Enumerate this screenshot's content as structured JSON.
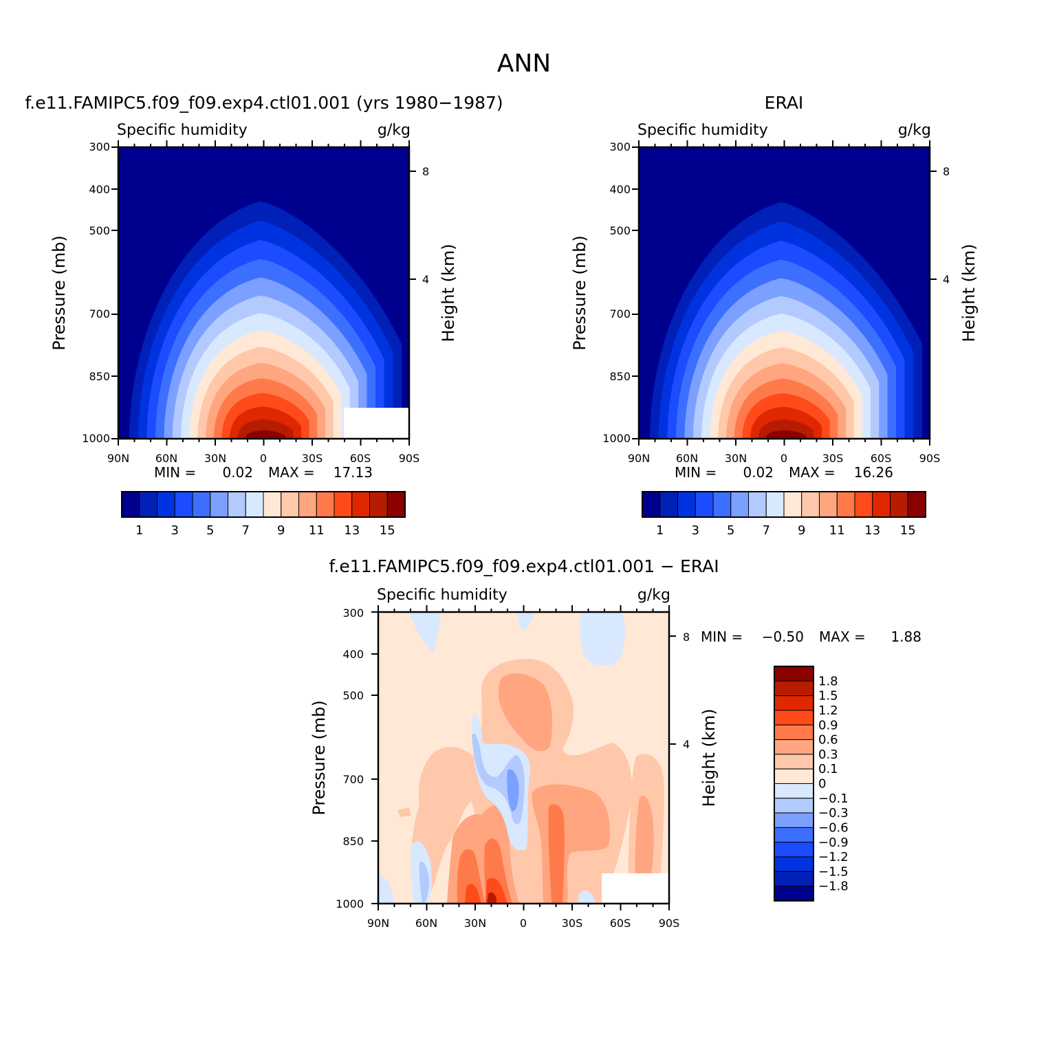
{
  "figure": {
    "title": "ANN"
  },
  "chart_data": [
    {
      "type": "contour",
      "title": "f.e11.FAMIPC5.f09_f09.exp4.ctl01.001 (yrs 1980−1987)",
      "left_subtitle": "Specific humidity",
      "right_subtitle": "g/kg",
      "ylabel": "Pressure (mb)",
      "ylabel_right": "Height (km)",
      "x_ticks": [
        "90N",
        "60N",
        "30N",
        "0",
        "30S",
        "60S",
        "90S"
      ],
      "y_ticks": [
        "300",
        "400",
        "500",
        "700",
        "850",
        "1000"
      ],
      "y_right_ticks": [
        "8",
        "4"
      ],
      "ylim": [
        1000,
        300
      ],
      "min_label": "MIN =",
      "min_value": "0.02",
      "max_label": "MAX =",
      "max_value": "17.13",
      "peak_value": 17.13,
      "colorbar_labels": [
        "1",
        "3",
        "5",
        "7",
        "9",
        "11",
        "13",
        "15"
      ],
      "colorbar_colors": [
        "#00008f",
        "#0020b8",
        "#0033e0",
        "#1c4cff",
        "#3d6fff",
        "#7ba0ff",
        "#b3caff",
        "#d8e8ff",
        "#ffe8d6",
        "#ffc8aa",
        "#ffa580",
        "#ff7a4a",
        "#ff4a1a",
        "#e02800",
        "#b81c00",
        "#8c0000"
      ],
      "missing_box": true
    },
    {
      "type": "contour",
      "title": "ERAI",
      "left_subtitle": "Specific humidity",
      "right_subtitle": "g/kg",
      "ylabel": "Pressure (mb)",
      "ylabel_right": "Height (km)",
      "x_ticks": [
        "90N",
        "60N",
        "30N",
        "0",
        "30S",
        "60S",
        "90S"
      ],
      "y_ticks": [
        "300",
        "400",
        "500",
        "700",
        "850",
        "1000"
      ],
      "y_right_ticks": [
        "8",
        "4"
      ],
      "ylim": [
        1000,
        300
      ],
      "min_label": "MIN =",
      "min_value": "0.02",
      "max_label": "MAX =",
      "max_value": "16.26",
      "peak_value": 16.26,
      "colorbar_labels": [
        "1",
        "3",
        "5",
        "7",
        "9",
        "11",
        "13",
        "15"
      ],
      "colorbar_colors": [
        "#00008f",
        "#0020b8",
        "#0033e0",
        "#1c4cff",
        "#3d6fff",
        "#7ba0ff",
        "#b3caff",
        "#d8e8ff",
        "#ffe8d6",
        "#ffc8aa",
        "#ffa580",
        "#ff7a4a",
        "#ff4a1a",
        "#e02800",
        "#b81c00",
        "#8c0000"
      ],
      "missing_box": false
    },
    {
      "type": "contour",
      "title": "f.e11.FAMIPC5.f09_f09.exp4.ctl01.001 − ERAI",
      "left_subtitle": "Specific humidity",
      "right_subtitle": "g/kg",
      "ylabel": "Pressure (mb)",
      "ylabel_right": "Height (km)",
      "x_ticks": [
        "90N",
        "60N",
        "30N",
        "0",
        "30S",
        "60S",
        "90S"
      ],
      "y_ticks": [
        "300",
        "400",
        "500",
        "700",
        "850",
        "1000"
      ],
      "y_right_ticks": [
        "8",
        "4"
      ],
      "ylim": [
        1000,
        300
      ],
      "min_label": "MIN =",
      "min_value": "−0.50",
      "max_label": "MAX =",
      "max_value": "1.88",
      "colorbar_labels": [
        "1.8",
        "1.5",
        "1.2",
        "0.9",
        "0.6",
        "0.3",
        "0.1",
        "0",
        "−0.1",
        "−0.3",
        "−0.6",
        "−0.9",
        "−1.2",
        "−1.5",
        "−1.8"
      ],
      "colorbar_colors": [
        "#8c0000",
        "#b81c00",
        "#e02800",
        "#ff4a1a",
        "#ff7a4a",
        "#ffa580",
        "#ffc8aa",
        "#ffe8d6",
        "#d8e8ff",
        "#b3caff",
        "#7ba0ff",
        "#3d6fff",
        "#1c4cff",
        "#0033e0",
        "#0020b8",
        "#00008f"
      ]
    }
  ]
}
